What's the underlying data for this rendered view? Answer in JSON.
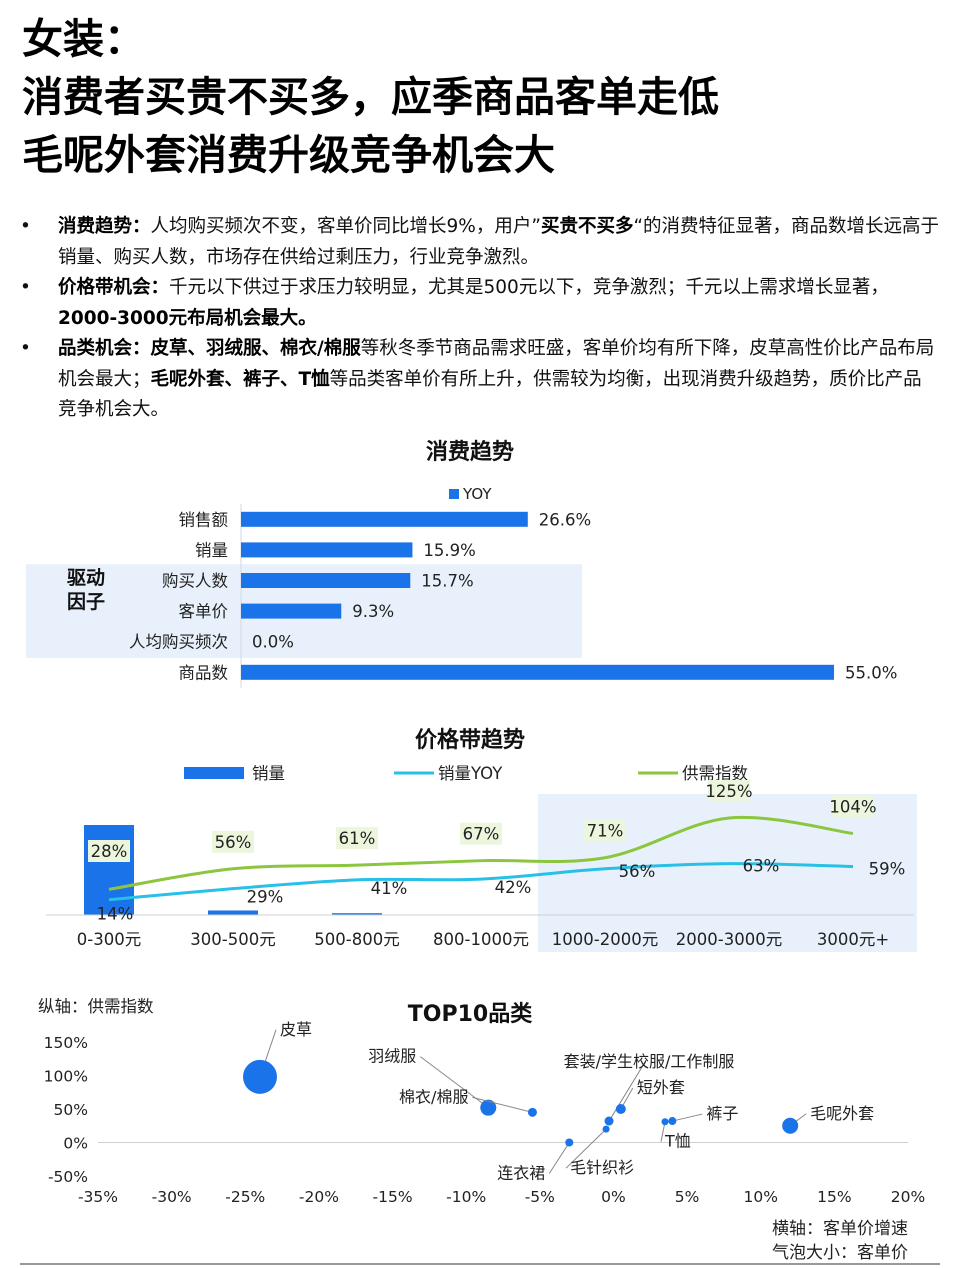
{
  "header": {
    "title_lines": [
      "女装：",
      "消费者买贵不买多，应季商品客单走低",
      "毛呢外套消费升级竞争机会大"
    ]
  },
  "bullets": [
    {
      "marker": "•",
      "parts": [
        {
          "t": "消费趋势：",
          "b": true
        },
        {
          "t": "人均购买频次不变，客单价同比增长9%，用户”",
          "b": false
        },
        {
          "t": "买贵不买多",
          "b": true
        },
        {
          "t": "“的消费特征显著，商品数增长远高于销量、购买人数，市场存在供给过剩压力，行业竞争激烈。",
          "b": false
        }
      ]
    },
    {
      "marker": "•",
      "parts": [
        {
          "t": "价格带机会：",
          "b": true
        },
        {
          "t": "千元以下供过于求压力较明显，尤其是500元以下，竞争激烈；千元以上需求增长显著，",
          "b": false
        },
        {
          "t": "2000-3000元布局机会最大。",
          "b": true
        }
      ]
    },
    {
      "marker": "•",
      "parts": [
        {
          "t": "品类机会：皮草、羽绒服、棉衣/棉服",
          "b": true
        },
        {
          "t": "等秋冬季节商品需求旺盛，客单价均有所下降，皮草高性价比产品布局机会最大；",
          "b": false
        },
        {
          "t": "毛呢外套、裤子、T恤",
          "b": true
        },
        {
          "t": "等品类客单价有所上升，供需较为均衡，出现消费升级趋势，质价比产品竞争机会大。",
          "b": false
        }
      ]
    }
  ],
  "chart_data": [
    {
      "type": "bar",
      "orientation": "horizontal",
      "title": "消费趋势",
      "legend": [
        "YOY"
      ],
      "legend_position": "top",
      "categories": [
        "销售额",
        "销量",
        "购买人数",
        "客单价",
        "人均购买频次",
        "商品数"
      ],
      "values": [
        26.6,
        15.9,
        15.7,
        9.3,
        0.0,
        55.0
      ],
      "value_labels": [
        "26.6%",
        "15.9%",
        "15.7%",
        "9.3%",
        "0.0%",
        "55.0%"
      ],
      "group_label": "驱动\n因子",
      "highlight_categories": [
        "购买人数",
        "客单价",
        "人均购买频次"
      ],
      "color": "#1a73e8"
    },
    {
      "type": "line",
      "title": "价格带趋势",
      "categories": [
        "0-300元",
        "300-500元",
        "500-800元",
        "800-1000元",
        "1000-2000元",
        "2000-3000元",
        "3000元+"
      ],
      "legend": [
        "销量",
        "销量YOY",
        "供需指数"
      ],
      "legend_position": "top",
      "highlight_categories": [
        "1000-2000元",
        "2000-3000元",
        "3000元+"
      ],
      "series": [
        {
          "name": "销量",
          "kind": "bar",
          "color": "#1a73e8",
          "values": [
            100,
            5,
            2,
            0,
            0,
            0,
            0
          ]
        },
        {
          "name": "销量YOY",
          "kind": "line",
          "color": "#29c0e8",
          "values": [
            14,
            29,
            41,
            42,
            56,
            63,
            59
          ],
          "labels": [
            "14%",
            "29%",
            "41%",
            "42%",
            "56%",
            "63%",
            "59%"
          ]
        },
        {
          "name": "供需指数",
          "kind": "line",
          "color": "#8cc63f",
          "values": [
            28,
            56,
            61,
            67,
            71,
            125,
            104
          ],
          "labels": [
            "28%",
            "56%",
            "61%",
            "67%",
            "71%",
            "125%",
            "104%"
          ]
        }
      ]
    },
    {
      "type": "scatter",
      "title": "TOP10品类",
      "ylabel": "纵轴：供需指数",
      "xlabel": "横轴：客单价增速",
      "size_label": "气泡大小：客单价",
      "xlim": [
        -35,
        20
      ],
      "ylim": [
        -50,
        150
      ],
      "x_ticks": [
        -35,
        -30,
        -25,
        -20,
        -15,
        -10,
        -5,
        0,
        5,
        10,
        15,
        20
      ],
      "y_ticks": [
        150,
        100,
        50,
        0,
        -50
      ],
      "x_tick_labels": [
        "-35%",
        "-30%",
        "-25%",
        "-20%",
        "-15%",
        "-10%",
        "-5%",
        "0%",
        "5%",
        "10%",
        "15%",
        "20%"
      ],
      "y_tick_labels": [
        "150%",
        "100%",
        "50%",
        "0%",
        "-50%"
      ],
      "color": "#1a73e8",
      "points": [
        {
          "name": "皮草",
          "x": -24,
          "y": 98,
          "size": 17
        },
        {
          "name": "羽绒服",
          "x": -8.5,
          "y": 52,
          "size": 8
        },
        {
          "name": "棉衣/棉服",
          "x": -5.5,
          "y": 45,
          "size": 4.5
        },
        {
          "name": "连衣裙",
          "x": -3,
          "y": 0,
          "size": 4
        },
        {
          "name": "套装/学生校服/工作制服",
          "x": -0.3,
          "y": 32,
          "size": 4.5
        },
        {
          "name": "毛针织衫",
          "x": -0.5,
          "y": 20,
          "size": 3.5
        },
        {
          "name": "短外套",
          "x": 0.5,
          "y": 50,
          "size": 5
        },
        {
          "name": "裤子",
          "x": 4,
          "y": 32,
          "size": 4
        },
        {
          "name": "T恤",
          "x": 3.5,
          "y": 31,
          "size": 3.5
        },
        {
          "name": "毛呢外套",
          "x": 12,
          "y": 25,
          "size": 8
        }
      ]
    }
  ]
}
